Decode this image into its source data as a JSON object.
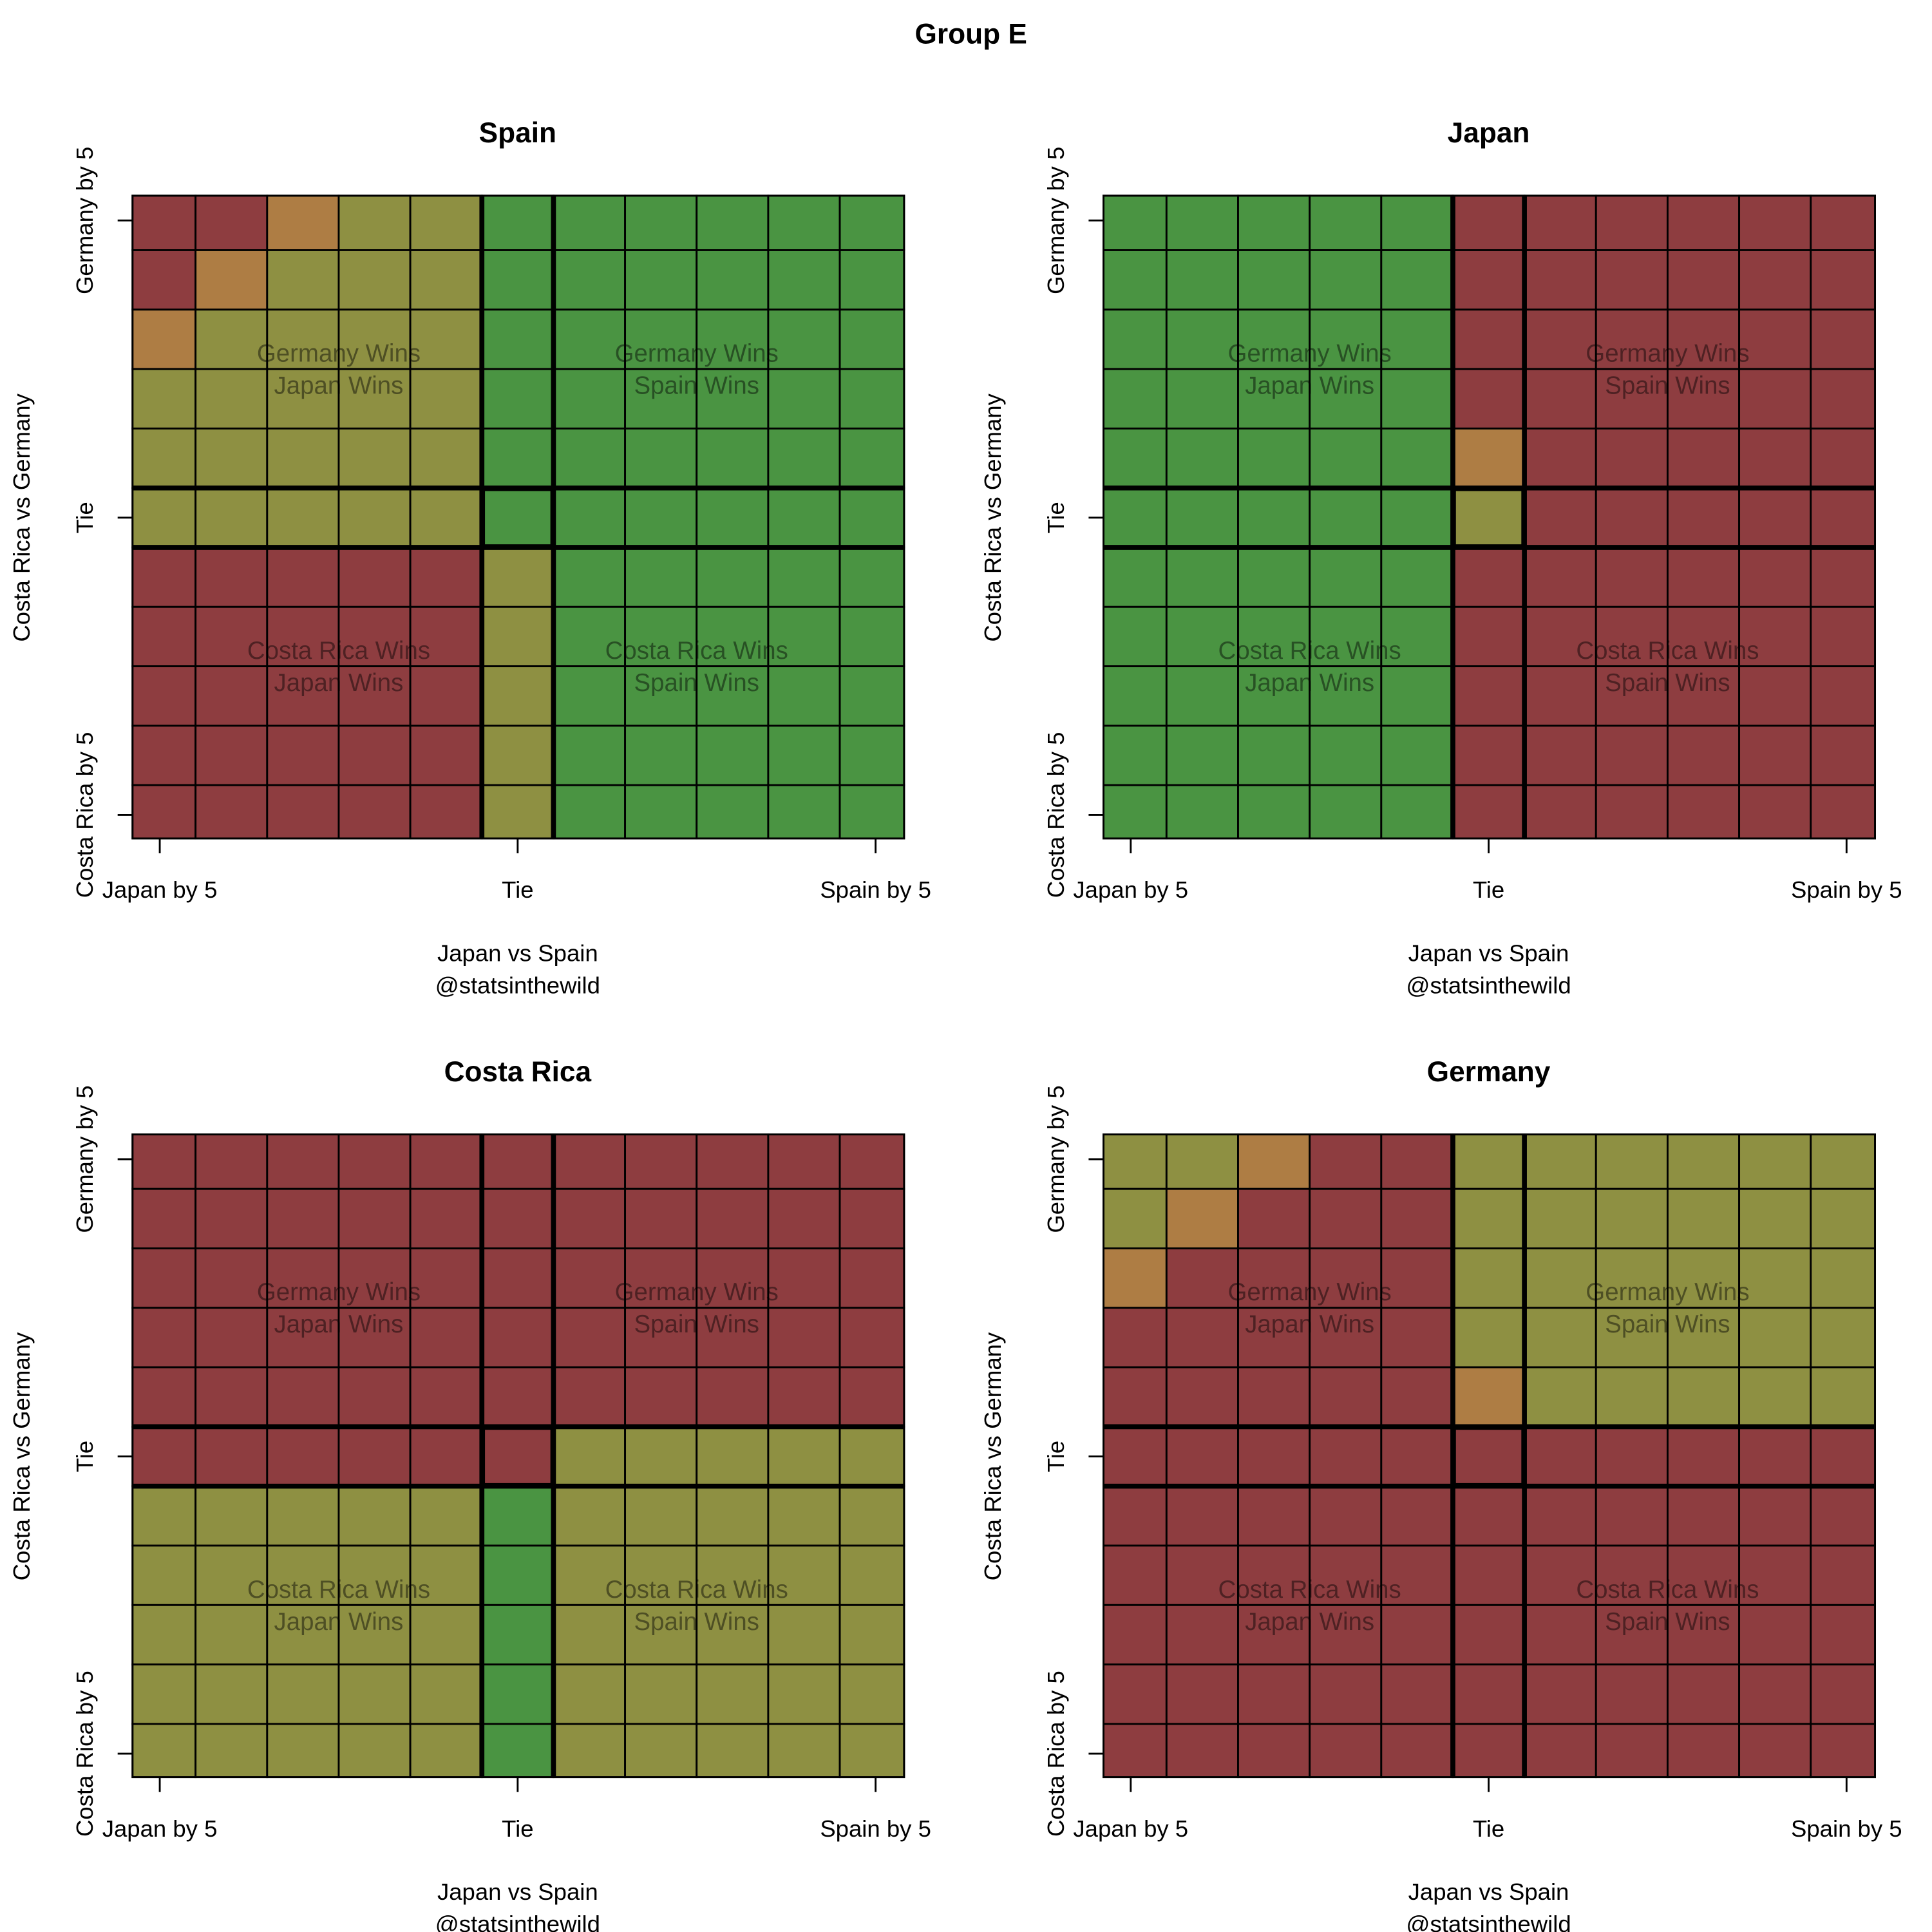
{
  "title": "Group E",
  "colors": {
    "R": "#8E3D40",
    "O": "#8E9042",
    "B": "#AE7D44",
    "G": "#4A9442"
  },
  "chart_data": [
    {
      "type": "heatmap",
      "title": "Spain",
      "xlabel": "Japan vs Spain",
      "xlabel2": "@statsinthewild",
      "ylabel": "Costa Rica vs Germany",
      "x_ticks": [
        "Japan by 5",
        "Tie",
        "Spain by 5"
      ],
      "y_ticks": [
        "Germany by 5",
        "Tie",
        "Costa Rica by 5"
      ],
      "x": [
        -5,
        -4,
        -3,
        -2,
        -1,
        0,
        1,
        2,
        3,
        4,
        5
      ],
      "y": [
        5,
        4,
        3,
        2,
        1,
        0,
        -1,
        -2,
        -3,
        -4,
        -5
      ],
      "annotations": [
        [
          "Germany Wins",
          "Japan Wins"
        ],
        [
          "Germany Wins",
          "Spain Wins"
        ],
        [
          "Costa Rica Wins",
          "Japan Wins"
        ],
        [
          "Costa Rica Wins",
          "Spain Wins"
        ]
      ],
      "grid": [
        "RRBOOGGGGGG",
        "RBOOOGGGGGG",
        "BOOOOGGGGGG",
        "OOOOOGGGGGG",
        "OOOOOGGGGGG",
        "OOOOOGGGGGG",
        "RRRRROGGGGG",
        "RRRRROGGGGG",
        "RRRRROGGGGG",
        "RRRRROGGGGG",
        "RRRRROGGGGG"
      ]
    },
    {
      "type": "heatmap",
      "title": "Japan",
      "xlabel": "Japan vs Spain",
      "xlabel2": "@statsinthewild",
      "ylabel": "Costa Rica vs Germany",
      "x_ticks": [
        "Japan by 5",
        "Tie",
        "Spain by 5"
      ],
      "y_ticks": [
        "Germany by 5",
        "Tie",
        "Costa Rica by 5"
      ],
      "x": [
        -5,
        -4,
        -3,
        -2,
        -1,
        0,
        1,
        2,
        3,
        4,
        5
      ],
      "y": [
        5,
        4,
        3,
        2,
        1,
        0,
        -1,
        -2,
        -3,
        -4,
        -5
      ],
      "annotations": [
        [
          "Germany Wins",
          "Japan Wins"
        ],
        [
          "Germany Wins",
          "Spain Wins"
        ],
        [
          "Costa Rica Wins",
          "Japan Wins"
        ],
        [
          "Costa Rica Wins",
          "Spain Wins"
        ]
      ],
      "grid": [
        "GGGGGRRRRRR",
        "GGGGGRRRRRR",
        "GGGGGRRRRRR",
        "GGGGGRRRRRR",
        "GGGGGBRRRRR",
        "GGGGGORRRRR",
        "GGGGGRRRRRR",
        "GGGGGRRRRRR",
        "GGGGGRRRRRR",
        "GGGGGRRRRRR",
        "GGGGGRRRRRR"
      ]
    },
    {
      "type": "heatmap",
      "title": "Costa Rica",
      "xlabel": "Japan vs Spain",
      "xlabel2": "@statsinthewild",
      "ylabel": "Costa Rica vs Germany",
      "x_ticks": [
        "Japan by 5",
        "Tie",
        "Spain by 5"
      ],
      "y_ticks": [
        "Germany by 5",
        "Tie",
        "Costa Rica by 5"
      ],
      "x": [
        -5,
        -4,
        -3,
        -2,
        -1,
        0,
        1,
        2,
        3,
        4,
        5
      ],
      "y": [
        5,
        4,
        3,
        2,
        1,
        0,
        -1,
        -2,
        -3,
        -4,
        -5
      ],
      "annotations": [
        [
          "Germany Wins",
          "Japan Wins"
        ],
        [
          "Germany Wins",
          "Spain Wins"
        ],
        [
          "Costa Rica Wins",
          "Japan Wins"
        ],
        [
          "Costa Rica Wins",
          "Spain Wins"
        ]
      ],
      "grid": [
        "RRRRRRRRRRR",
        "RRRRRRRRRRR",
        "RRRRRRRRRRR",
        "RRRRRRRRRRR",
        "RRRRRRRRRRR",
        "RRRRRROOOOO",
        "OOOOOGOOOOO",
        "OOOOOGOOOOO",
        "OOOOOGOOOOO",
        "OOOOOGOOOOO",
        "OOOOOGOOOOO"
      ]
    },
    {
      "type": "heatmap",
      "title": "Germany",
      "xlabel": "Japan vs Spain",
      "xlabel2": "@statsinthewild",
      "ylabel": "Costa Rica vs Germany",
      "x_ticks": [
        "Japan by 5",
        "Tie",
        "Spain by 5"
      ],
      "y_ticks": [
        "Germany by 5",
        "Tie",
        "Costa Rica by 5"
      ],
      "x": [
        -5,
        -4,
        -3,
        -2,
        -1,
        0,
        1,
        2,
        3,
        4,
        5
      ],
      "y": [
        5,
        4,
        3,
        2,
        1,
        0,
        -1,
        -2,
        -3,
        -4,
        -5
      ],
      "annotations": [
        [
          "Germany Wins",
          "Japan Wins"
        ],
        [
          "Germany Wins",
          "Spain Wins"
        ],
        [
          "Costa Rica Wins",
          "Japan Wins"
        ],
        [
          "Costa Rica Wins",
          "Spain Wins"
        ]
      ],
      "grid": [
        "OOBRROOOOOO",
        "OBRRROOOOOO",
        "BRRRROOOOOO",
        "RRRRROOOOOO",
        "RRRRRBOOOOO",
        "RRRRRRRRRRR",
        "RRRRRRRRRRR",
        "RRRRRRRRRRR",
        "RRRRRRRRRRR",
        "RRRRRRRRRRR",
        "RRRRRRRRRRR"
      ]
    }
  ]
}
